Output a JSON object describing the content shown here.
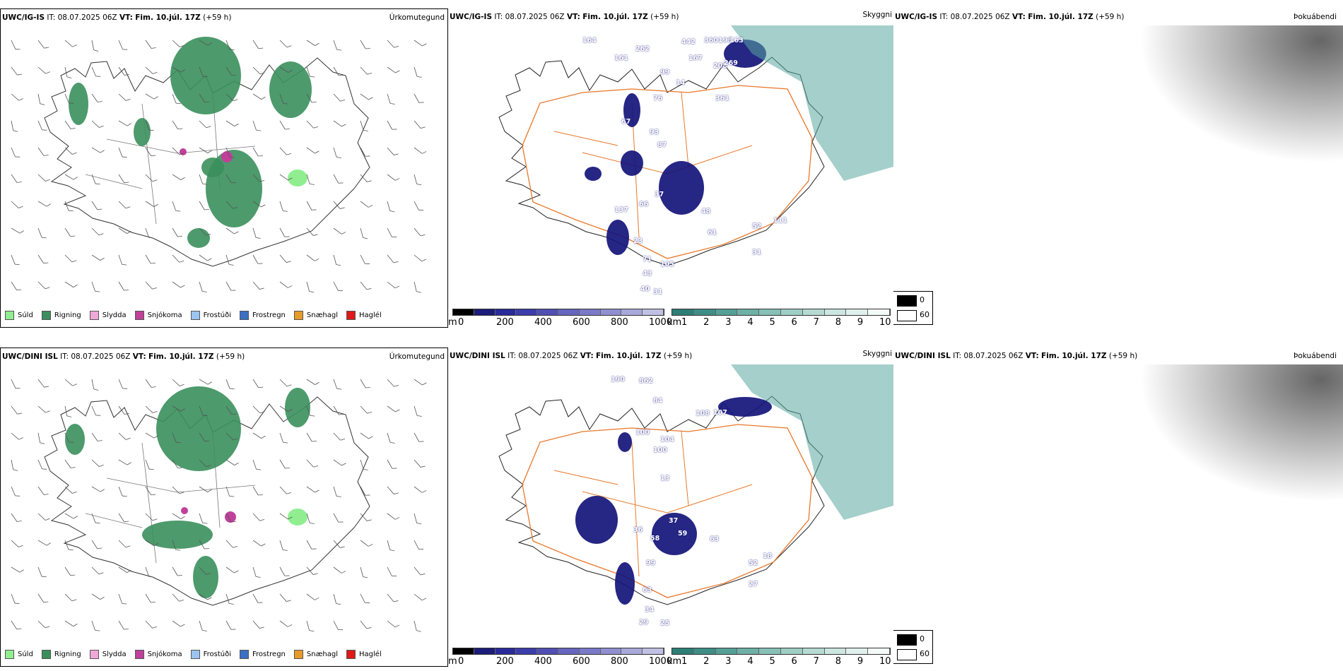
{
  "row1": {
    "precip": {
      "header_model": "UWC/IG-IS",
      "header_it_label": "IT:",
      "header_it": "08.07.2025 06Z",
      "header_vt_label": "VT:",
      "header_vt": "Fim. 10.júl. 17Z",
      "header_lead": "(+59 h)",
      "title": "Úrkomutegund"
    },
    "vis": {
      "header_model": "UWC/IG-IS",
      "header_it_label": "IT:",
      "header_it": "08.07.2025 06Z",
      "header_vt_label": "VT:",
      "header_vt": "Fim. 10.júl. 17Z",
      "header_lead": "(+59 h)",
      "title": "Skyggni",
      "labels": [
        "164",
        "262",
        "442",
        "360",
        "193",
        "163",
        "161",
        "167",
        "99",
        "208",
        "269",
        "14",
        "361",
        "76",
        "67",
        "93",
        "87",
        "37",
        "48",
        "66",
        "137",
        "61",
        "52",
        "111",
        "31",
        "23",
        "71",
        "105",
        "43",
        "40",
        "31"
      ]
    },
    "fog": {
      "header_model": "UWC/IG-IS",
      "header_it_label": "IT:",
      "header_it": "08.07.2025 06Z",
      "header_vt_label": "VT:",
      "header_vt": "Fim. 10.júl. 17Z",
      "header_lead": "(+59 h)",
      "title": "Þokuábendi"
    }
  },
  "row2": {
    "precip": {
      "header_model": "UWC/DINI ISL",
      "header_it_label": "IT:",
      "header_it": "08.07.2025 06Z",
      "header_vt_label": "VT:",
      "header_vt": "Fim. 10.júl. 17Z",
      "header_lead": "(+59 h)",
      "title": "Úrkomutegund"
    },
    "vis": {
      "header_model": "UWC/DINI ISL",
      "header_it_label": "IT:",
      "header_it": "08.07.2025 06Z",
      "header_vt_label": "VT:",
      "header_vt": "Fim. 10.júl. 17Z",
      "header_lead": "(+59 h)",
      "title": "Skyggni",
      "labels": [
        "190",
        "862",
        "84",
        "108",
        "107",
        "100",
        "104",
        "100",
        "13",
        "37",
        "36",
        "58",
        "59",
        "63",
        "99",
        "52",
        "18",
        "27",
        "63",
        "34",
        "29",
        "25"
      ]
    },
    "fog": {
      "header_model": "UWC/DINI ISL",
      "header_it_label": "IT:",
      "header_it": "08.07.2025 06Z",
      "header_vt_label": "VT:",
      "header_vt": "Fim. 10.júl. 17Z",
      "header_lead": "(+59 h)",
      "title": "Þokuábendi"
    }
  },
  "precip_legend": [
    {
      "label": "Súld",
      "color": "#90ee90"
    },
    {
      "label": "Rigning",
      "color": "#3a8f5c"
    },
    {
      "label": "Slydda",
      "color": "#f0a8d8"
    },
    {
      "label": "Snjókoma",
      "color": "#c0409a"
    },
    {
      "label": "Frostúði",
      "color": "#9cc4f0"
    },
    {
      "label": "Frostregn",
      "color": "#3a6fc4"
    },
    {
      "label": "Snæhagl",
      "color": "#e89a28"
    },
    {
      "label": "Haglél",
      "color": "#e01818"
    }
  ],
  "vis_bar_m": {
    "unit": "m",
    "ticks": [
      "0",
      "200",
      "400",
      "600",
      "800",
      "1000"
    ],
    "colors": [
      "#000000",
      "#1c1c7a",
      "#2a2a9a",
      "#3c3caa",
      "#5050b4",
      "#6666c0",
      "#7a7ac8",
      "#9090d0",
      "#a8a8da",
      "#c0c0e4"
    ]
  },
  "vis_bar_km": {
    "unit": "km",
    "ticks": [
      "1",
      "2",
      "3",
      "4",
      "5",
      "6",
      "7",
      "8",
      "9",
      "10"
    ],
    "colors": [
      "#2e7e76",
      "#3f8e86",
      "#55a096",
      "#6db0a6",
      "#86c0b6",
      "#9ecec4",
      "#b6dad2",
      "#cce6e0",
      "#e0f0ec",
      "#f4faf8"
    ]
  },
  "fog_legend": [
    {
      "value": "0",
      "color": "#000000"
    },
    {
      "value": "60",
      "color": "#ffffff"
    }
  ],
  "colors": {
    "rain": "#3a8f5c",
    "drizzle": "#90ee90",
    "snow": "#c0409a",
    "vis_dark": "#14147a",
    "vis_teal": "#5aa8a0",
    "road": "#e8782a",
    "fog_land": "#f3e1d2",
    "fog_road": "#e0432a",
    "river": "#6a7ef0"
  }
}
